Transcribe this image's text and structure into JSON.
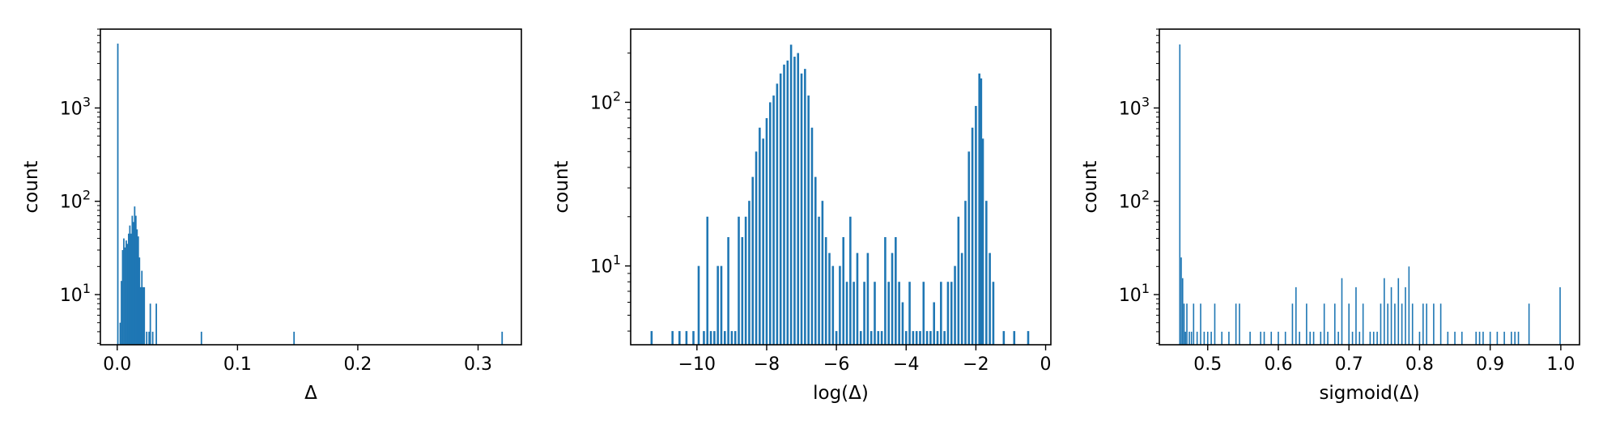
{
  "figure": {
    "background": "#ffffff",
    "bar_color": "#1f77b4"
  },
  "chart_data": [
    {
      "type": "bar",
      "title": "",
      "xlabel": "Δ",
      "ylabel": "count",
      "xscale": "linear",
      "yscale": "log",
      "xlim": [
        -0.014,
        0.336
      ],
      "ylim": [
        2.9,
        7000
      ],
      "xticks": [
        0.0,
        0.1,
        0.2,
        0.3
      ],
      "xtick_labels": [
        "0.0",
        "0.1",
        "0.2",
        "0.3"
      ],
      "yticks": [
        10,
        100,
        1000
      ],
      "ytick_bases": [
        "10",
        "10",
        "10"
      ],
      "ytick_exps": [
        "1",
        "2",
        "3"
      ],
      "grid": false,
      "bar_width": 0.0012,
      "bars": [
        [
          0.0005,
          4900
        ],
        [
          0.0025,
          5
        ],
        [
          0.0035,
          14
        ],
        [
          0.0045,
          30
        ],
        [
          0.0055,
          40
        ],
        [
          0.0065,
          32
        ],
        [
          0.0075,
          38
        ],
        [
          0.0085,
          35
        ],
        [
          0.0095,
          45
        ],
        [
          0.0105,
          55
        ],
        [
          0.0115,
          45
        ],
        [
          0.0125,
          70
        ],
        [
          0.0135,
          60
        ],
        [
          0.0145,
          88
        ],
        [
          0.0155,
          70
        ],
        [
          0.0165,
          50
        ],
        [
          0.0175,
          42
        ],
        [
          0.0185,
          25
        ],
        [
          0.0195,
          12
        ],
        [
          0.0205,
          18
        ],
        [
          0.0215,
          12
        ],
        [
          0.0225,
          12
        ],
        [
          0.0245,
          4
        ],
        [
          0.0265,
          4
        ],
        [
          0.0275,
          8
        ],
        [
          0.0295,
          4
        ],
        [
          0.0325,
          8
        ],
        [
          0.07,
          4
        ],
        [
          0.147,
          4
        ],
        [
          0.32,
          4
        ]
      ]
    },
    {
      "type": "bar",
      "title": "",
      "xlabel": "log(Δ)",
      "ylabel": "count",
      "xscale": "linear",
      "yscale": "log",
      "xlim": [
        -11.9,
        0.15
      ],
      "ylim": [
        3.3,
        280
      ],
      "xticks": [
        -10,
        -8,
        -6,
        -4,
        -2,
        0
      ],
      "xtick_labels": [
        "−10",
        "−8",
        "−6",
        "−4",
        "−2",
        "0"
      ],
      "yticks": [
        10,
        100
      ],
      "ytick_bases": [
        "10",
        "10"
      ],
      "ytick_exps": [
        "1",
        "2"
      ],
      "grid": false,
      "bar_width": 0.06,
      "bars": [
        [
          -11.3,
          4
        ],
        [
          -10.7,
          4
        ],
        [
          -10.5,
          4
        ],
        [
          -10.3,
          4
        ],
        [
          -10.1,
          4
        ],
        [
          -9.95,
          10
        ],
        [
          -9.8,
          4
        ],
        [
          -9.7,
          20
        ],
        [
          -9.6,
          4
        ],
        [
          -9.5,
          4
        ],
        [
          -9.4,
          10
        ],
        [
          -9.3,
          10
        ],
        [
          -9.2,
          4
        ],
        [
          -9.1,
          15
        ],
        [
          -9.0,
          4
        ],
        [
          -8.9,
          4
        ],
        [
          -8.8,
          20
        ],
        [
          -8.7,
          15
        ],
        [
          -8.6,
          20
        ],
        [
          -8.5,
          25
        ],
        [
          -8.4,
          35
        ],
        [
          -8.3,
          50
        ],
        [
          -8.2,
          70
        ],
        [
          -8.1,
          60
        ],
        [
          -8.0,
          80
        ],
        [
          -7.9,
          100
        ],
        [
          -7.8,
          110
        ],
        [
          -7.7,
          130
        ],
        [
          -7.6,
          150
        ],
        [
          -7.5,
          170
        ],
        [
          -7.4,
          180
        ],
        [
          -7.3,
          225
        ],
        [
          -7.2,
          190
        ],
        [
          -7.1,
          200
        ],
        [
          -7.0,
          150
        ],
        [
          -6.9,
          160
        ],
        [
          -6.8,
          110
        ],
        [
          -6.7,
          70
        ],
        [
          -6.6,
          35
        ],
        [
          -6.5,
          20
        ],
        [
          -6.4,
          25
        ],
        [
          -6.3,
          15
        ],
        [
          -6.2,
          12
        ],
        [
          -6.1,
          10
        ],
        [
          -6.0,
          4
        ],
        [
          -5.9,
          10
        ],
        [
          -5.8,
          15
        ],
        [
          -5.7,
          8
        ],
        [
          -5.6,
          20
        ],
        [
          -5.5,
          8
        ],
        [
          -5.4,
          12
        ],
        [
          -5.3,
          4
        ],
        [
          -5.2,
          8
        ],
        [
          -5.1,
          12
        ],
        [
          -5.0,
          4
        ],
        [
          -4.9,
          8
        ],
        [
          -4.8,
          4
        ],
        [
          -4.7,
          4
        ],
        [
          -4.6,
          15
        ],
        [
          -4.5,
          8
        ],
        [
          -4.4,
          12
        ],
        [
          -4.3,
          15
        ],
        [
          -4.2,
          8
        ],
        [
          -4.1,
          6
        ],
        [
          -4.0,
          4
        ],
        [
          -3.9,
          8
        ],
        [
          -3.8,
          4
        ],
        [
          -3.7,
          4
        ],
        [
          -3.6,
          4
        ],
        [
          -3.5,
          8
        ],
        [
          -3.4,
          4
        ],
        [
          -3.3,
          4
        ],
        [
          -3.2,
          6
        ],
        [
          -3.1,
          4
        ],
        [
          -3.0,
          8
        ],
        [
          -2.9,
          4
        ],
        [
          -2.8,
          8
        ],
        [
          -2.7,
          8
        ],
        [
          -2.6,
          10
        ],
        [
          -2.5,
          20
        ],
        [
          -2.4,
          12
        ],
        [
          -2.3,
          25
        ],
        [
          -2.2,
          50
        ],
        [
          -2.1,
          70
        ],
        [
          -2.0,
          95
        ],
        [
          -1.9,
          150
        ],
        [
          -1.85,
          140
        ],
        [
          -1.8,
          60
        ],
        [
          -1.7,
          25
        ],
        [
          -1.6,
          12
        ],
        [
          -1.5,
          8
        ],
        [
          -1.2,
          4
        ],
        [
          -0.9,
          4
        ],
        [
          -0.5,
          4
        ]
      ]
    },
    {
      "type": "bar",
      "title": "",
      "xlabel": "sigmoid(Δ)",
      "ylabel": "count",
      "xscale": "linear",
      "yscale": "log",
      "xlim": [
        0.4315,
        1.0265
      ],
      "ylim": [
        2.9,
        7000
      ],
      "xticks": [
        0.5,
        0.6,
        0.7,
        0.8,
        0.9,
        1.0
      ],
      "xtick_labels": [
        "0.5",
        "0.6",
        "0.7",
        "0.8",
        "0.9",
        "1.0"
      ],
      "yticks": [
        10,
        100,
        1000
      ],
      "ytick_bases": [
        "10",
        "10",
        "10"
      ],
      "ytick_exps": [
        "1",
        "2",
        "3"
      ],
      "grid": false,
      "bar_width": 0.0017,
      "bars": [
        [
          0.4605,
          4800
        ],
        [
          0.4625,
          25
        ],
        [
          0.4645,
          15
        ],
        [
          0.4665,
          8
        ],
        [
          0.4685,
          4
        ],
        [
          0.4705,
          8
        ],
        [
          0.474,
          4
        ],
        [
          0.477,
          4
        ],
        [
          0.48,
          8
        ],
        [
          0.485,
          4
        ],
        [
          0.49,
          8
        ],
        [
          0.495,
          4
        ],
        [
          0.5,
          4
        ],
        [
          0.505,
          4
        ],
        [
          0.51,
          8
        ],
        [
          0.52,
          4
        ],
        [
          0.53,
          4
        ],
        [
          0.54,
          8
        ],
        [
          0.545,
          8
        ],
        [
          0.56,
          4
        ],
        [
          0.575,
          4
        ],
        [
          0.58,
          4
        ],
        [
          0.59,
          4
        ],
        [
          0.6,
          4
        ],
        [
          0.61,
          4
        ],
        [
          0.62,
          8
        ],
        [
          0.625,
          12
        ],
        [
          0.63,
          4
        ],
        [
          0.64,
          8
        ],
        [
          0.645,
          4
        ],
        [
          0.65,
          4
        ],
        [
          0.66,
          4
        ],
        [
          0.665,
          8
        ],
        [
          0.67,
          4
        ],
        [
          0.68,
          8
        ],
        [
          0.685,
          4
        ],
        [
          0.69,
          15
        ],
        [
          0.7,
          8
        ],
        [
          0.705,
          4
        ],
        [
          0.71,
          12
        ],
        [
          0.715,
          4
        ],
        [
          0.72,
          8
        ],
        [
          0.73,
          4
        ],
        [
          0.735,
          4
        ],
        [
          0.74,
          4
        ],
        [
          0.745,
          8
        ],
        [
          0.75,
          15
        ],
        [
          0.755,
          8
        ],
        [
          0.76,
          12
        ],
        [
          0.765,
          8
        ],
        [
          0.77,
          15
        ],
        [
          0.775,
          8
        ],
        [
          0.78,
          12
        ],
        [
          0.785,
          20
        ],
        [
          0.79,
          8
        ],
        [
          0.8,
          4
        ],
        [
          0.805,
          8
        ],
        [
          0.81,
          8
        ],
        [
          0.82,
          8
        ],
        [
          0.83,
          8
        ],
        [
          0.84,
          4
        ],
        [
          0.85,
          4
        ],
        [
          0.86,
          4
        ],
        [
          0.88,
          4
        ],
        [
          0.885,
          4
        ],
        [
          0.89,
          4
        ],
        [
          0.9,
          4
        ],
        [
          0.91,
          4
        ],
        [
          0.92,
          4
        ],
        [
          0.93,
          4
        ],
        [
          0.935,
          4
        ],
        [
          0.94,
          4
        ],
        [
          0.955,
          8
        ],
        [
          0.999,
          12
        ]
      ]
    }
  ]
}
